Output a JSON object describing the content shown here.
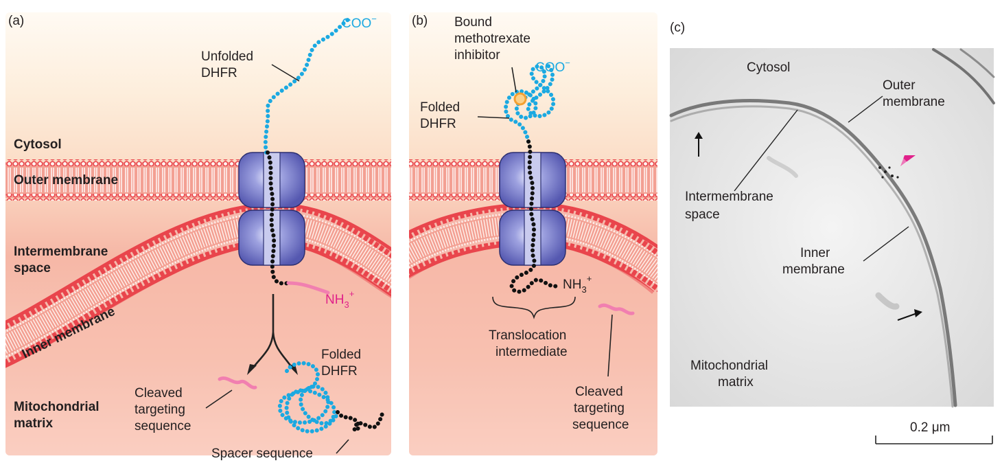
{
  "panel_a": {
    "tag": "(a)",
    "coo": "COO",
    "coo_sup": "−",
    "unfolded_1": "Unfolded",
    "unfolded_2": "DHFR",
    "cytosol": "Cytosol",
    "outer_membrane": "Outer membrane",
    "intermembrane_1": "Intermembrane",
    "intermembrane_2": "space",
    "inner_membrane": "Inner membrane",
    "nh3": "NH",
    "nh3_sub": "3",
    "nh3_sup": "+",
    "folded_1": "Folded",
    "folded_2": "DHFR",
    "mito_1": "Mitochondrial",
    "mito_2": "matrix",
    "cleaved_1": "Cleaved",
    "cleaved_2": "targeting",
    "cleaved_3": "sequence",
    "spacer": "Spacer sequence"
  },
  "panel_b": {
    "tag": "(b)",
    "bound_1": "Bound",
    "bound_2": "methotrexate",
    "bound_3": "inhibitor",
    "coo": "COO",
    "coo_sup": "−",
    "folded_1": "Folded",
    "folded_2": "DHFR",
    "nh3": "NH",
    "nh3_sub": "3",
    "nh3_sup": "+",
    "trans_1": "Translocation",
    "trans_2": "intermediate",
    "cleaved_1": "Cleaved",
    "cleaved_2": "targeting",
    "cleaved_3": "sequence"
  },
  "panel_c": {
    "tag": "(c)",
    "cytosol": "Cytosol",
    "outer_1": "Outer",
    "outer_2": "membrane",
    "inter_1": "Intermembrane",
    "inter_2": "space",
    "inner_1": "Inner",
    "inner_2": "membrane",
    "mito_1": "Mitochondrial",
    "mito_2": "matrix",
    "scale": "0.2 μm"
  },
  "colors": {
    "cytosol_top": "#fdeedc",
    "cytosol_mid": "#fbd7c2",
    "matrix": "#f4a99b",
    "lipid_head": "#e9454c",
    "protein": "#1ba9e1",
    "channel": "#6b6fc3",
    "signal": "#e0218a",
    "chain": "#111111",
    "inhibitor": "#f4a030"
  }
}
